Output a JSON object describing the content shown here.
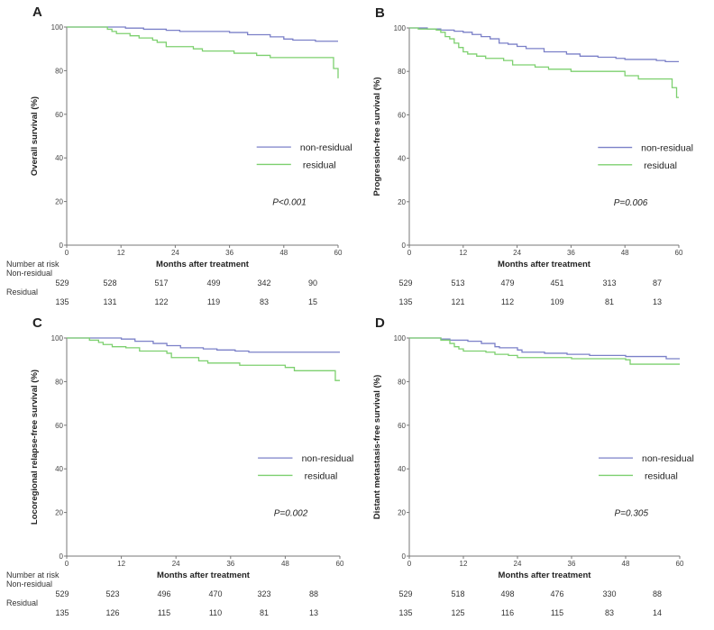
{
  "colors": {
    "non_residual": "#7b80c8",
    "residual": "#7dd06f",
    "axis": "#777777"
  },
  "risk_table": {
    "title": "Number at risk",
    "row_labels": [
      "Non-residual",
      "Residual"
    ]
  },
  "chart_data": [
    {
      "type": "line",
      "panel": "A",
      "step": true,
      "xlabel": "Months after treatment",
      "ylabel": "Overall survival (%)",
      "xlim": [
        0,
        60
      ],
      "ylim": [
        0,
        100
      ],
      "xticks": [
        0,
        12,
        24,
        36,
        48,
        60
      ],
      "yticks": [
        0,
        20,
        40,
        60,
        80,
        100
      ],
      "p_value": "P<0.001",
      "legend": "right",
      "series": [
        {
          "name": "non-residual",
          "points": [
            [
              0,
              100
            ],
            [
              13,
              99.5
            ],
            [
              17,
              99
            ],
            [
              22,
              98.5
            ],
            [
              25,
              98
            ],
            [
              36,
              97.5
            ],
            [
              40,
              96.5
            ],
            [
              45,
              95.5
            ],
            [
              48,
              94.5
            ],
            [
              50,
              94
            ],
            [
              55,
              93.5
            ],
            [
              60,
              93.5
            ]
          ]
        },
        {
          "name": "residual",
          "points": [
            [
              0,
              100
            ],
            [
              9,
              99
            ],
            [
              10,
              98
            ],
            [
              11,
              97
            ],
            [
              14,
              96
            ],
            [
              16,
              95
            ],
            [
              19,
              94
            ],
            [
              20,
              93
            ],
            [
              22,
              91
            ],
            [
              28,
              90
            ],
            [
              30,
              89
            ],
            [
              37,
              88
            ],
            [
              42,
              87
            ],
            [
              45,
              86
            ],
            [
              59,
              81
            ],
            [
              60,
              76.5
            ]
          ]
        }
      ],
      "at_risk": {
        "non_residual": [
          "529",
          "528",
          "517",
          "499",
          "342",
          "90"
        ],
        "residual": [
          "135",
          "131",
          "122",
          "119",
          "83",
          "15"
        ]
      }
    },
    {
      "type": "line",
      "panel": "B",
      "step": true,
      "xlabel": "Months after treatment",
      "ylabel": "Progression-free survival (%)",
      "xlim": [
        0,
        60
      ],
      "ylim": [
        0,
        100
      ],
      "xticks": [
        0,
        12,
        24,
        36,
        48,
        60
      ],
      "yticks": [
        0,
        20,
        40,
        60,
        80,
        100
      ],
      "p_value": "P=0.006",
      "legend": "right",
      "series": [
        {
          "name": "non-residual",
          "points": [
            [
              0,
              100
            ],
            [
              4,
              99.5
            ],
            [
              7,
              99
            ],
            [
              10,
              98.5
            ],
            [
              12,
              98
            ],
            [
              14,
              97
            ],
            [
              16,
              96
            ],
            [
              18,
              95
            ],
            [
              20,
              93
            ],
            [
              22,
              92.5
            ],
            [
              24,
              91.5
            ],
            [
              26,
              90.5
            ],
            [
              30,
              89
            ],
            [
              35,
              88
            ],
            [
              38,
              87
            ],
            [
              42,
              86.5
            ],
            [
              46,
              86
            ],
            [
              48,
              85.5
            ],
            [
              55,
              85
            ],
            [
              57,
              84.5
            ],
            [
              60,
              84.5
            ]
          ]
        },
        {
          "name": "residual",
          "points": [
            [
              0,
              100
            ],
            [
              2,
              99.5
            ],
            [
              6,
              99
            ],
            [
              7,
              98
            ],
            [
              8,
              96
            ],
            [
              9,
              95
            ],
            [
              10,
              93
            ],
            [
              11,
              91
            ],
            [
              12,
              89
            ],
            [
              13,
              88
            ],
            [
              15,
              87
            ],
            [
              17,
              86
            ],
            [
              21,
              85
            ],
            [
              23,
              83
            ],
            [
              28,
              82
            ],
            [
              31,
              81
            ],
            [
              36,
              80
            ],
            [
              48,
              78
            ],
            [
              51,
              76.5
            ],
            [
              58.5,
              72.5
            ],
            [
              59.5,
              68
            ],
            [
              60,
              68
            ]
          ]
        }
      ],
      "at_risk": {
        "non_residual": [
          "529",
          "513",
          "479",
          "451",
          "313",
          "87"
        ],
        "residual": [
          "135",
          "121",
          "112",
          "109",
          "81",
          "13"
        ]
      }
    },
    {
      "type": "line",
      "panel": "C",
      "step": true,
      "xlabel": "Months after treatment",
      "ylabel": "Locoregional relapse-free survival (%)",
      "xlim": [
        0,
        60
      ],
      "ylim": [
        0,
        100
      ],
      "xticks": [
        0,
        12,
        24,
        36,
        48,
        60
      ],
      "yticks": [
        0,
        20,
        40,
        60,
        80,
        100
      ],
      "p_value": "P=0.002",
      "legend": "right",
      "series": [
        {
          "name": "non-residual",
          "points": [
            [
              0,
              100
            ],
            [
              10,
              100
            ],
            [
              12,
              99.5
            ],
            [
              15,
              98.5
            ],
            [
              19,
              97.5
            ],
            [
              22,
              96.5
            ],
            [
              25,
              95.5
            ],
            [
              30,
              95
            ],
            [
              33,
              94.5
            ],
            [
              37,
              94
            ],
            [
              40,
              93.5
            ],
            [
              60,
              93.5
            ]
          ]
        },
        {
          "name": "residual",
          "points": [
            [
              0,
              100
            ],
            [
              5,
              99
            ],
            [
              7,
              98
            ],
            [
              8,
              97
            ],
            [
              10,
              96
            ],
            [
              13,
              95.5
            ],
            [
              16,
              94
            ],
            [
              22,
              93
            ],
            [
              23,
              91
            ],
            [
              29,
              89.5
            ],
            [
              31,
              88.5
            ],
            [
              38,
              87.5
            ],
            [
              48,
              86.5
            ],
            [
              50,
              85
            ],
            [
              59,
              80.5
            ],
            [
              60,
              80.5
            ]
          ]
        }
      ],
      "at_risk": {
        "non_residual": [
          "529",
          "523",
          "496",
          "470",
          "323",
          "88"
        ],
        "residual": [
          "135",
          "126",
          "115",
          "110",
          "81",
          "13"
        ]
      }
    },
    {
      "type": "line",
      "panel": "D",
      "step": true,
      "xlabel": "Months after treatment",
      "ylabel": "Distant metastasis-free survival (%)",
      "xlim": [
        0,
        60
      ],
      "ylim": [
        0,
        100
      ],
      "xticks": [
        0,
        12,
        24,
        36,
        48,
        60
      ],
      "yticks": [
        0,
        20,
        40,
        60,
        80,
        100
      ],
      "p_value": "P=0.305",
      "legend": "right",
      "series": [
        {
          "name": "non-residual",
          "points": [
            [
              0,
              100
            ],
            [
              5,
              100
            ],
            [
              7,
              99.5
            ],
            [
              9,
              99
            ],
            [
              13,
              98.5
            ],
            [
              16,
              97.5
            ],
            [
              19,
              96
            ],
            [
              20,
              95.5
            ],
            [
              24,
              94.5
            ],
            [
              25,
              93.5
            ],
            [
              30,
              93
            ],
            [
              35,
              92.5
            ],
            [
              40,
              92
            ],
            [
              48,
              91.5
            ],
            [
              57,
              90.5
            ],
            [
              60,
              90.5
            ]
          ]
        },
        {
          "name": "residual",
          "points": [
            [
              0,
              100
            ],
            [
              7,
              99
            ],
            [
              9,
              97.5
            ],
            [
              10,
              96
            ],
            [
              11,
              95
            ],
            [
              12,
              94
            ],
            [
              17,
              93.5
            ],
            [
              19,
              92.5
            ],
            [
              22,
              92
            ],
            [
              24,
              91
            ],
            [
              36,
              90.5
            ],
            [
              48,
              90
            ],
            [
              49,
              88
            ],
            [
              60,
              88
            ]
          ]
        }
      ],
      "at_risk": {
        "non_residual": [
          "529",
          "518",
          "498",
          "476",
          "330",
          "88"
        ],
        "residual": [
          "135",
          "125",
          "116",
          "115",
          "83",
          "14"
        ]
      }
    }
  ]
}
